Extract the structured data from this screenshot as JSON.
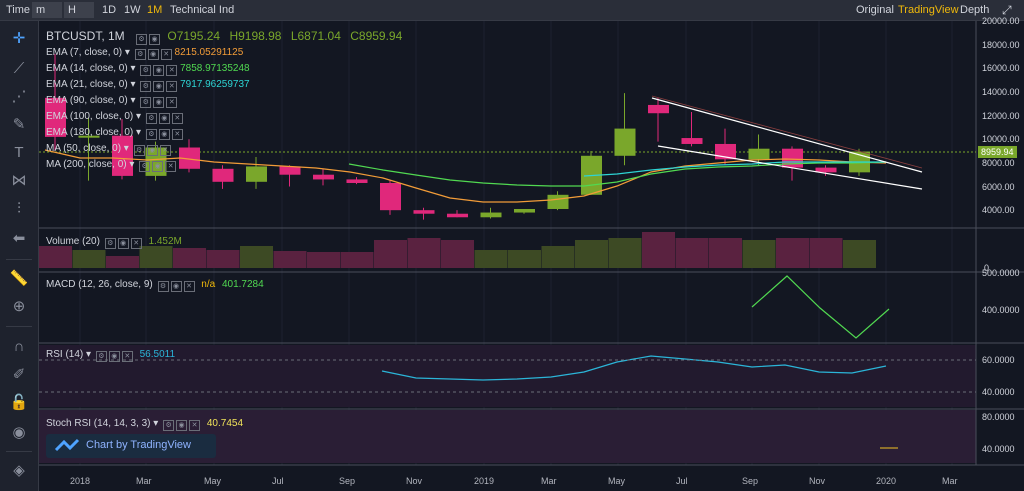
{
  "toolbar": {
    "time": "Time",
    "m": "m",
    "h": "H",
    "d1": "1D",
    "w1": "1W",
    "m1": "1M",
    "ti": "Technical Ind",
    "original": "Original",
    "tradingview": "TradingView",
    "depth": "Depth"
  },
  "symbol": {
    "name": "BTCUSDT, 1M",
    "o": "O7195.24",
    "h": "H9198.98",
    "l": "L6871.04",
    "c": "C8959.94"
  },
  "indicators": [
    {
      "label": "EMA (7, close, 0)",
      "value": "8215.05291125",
      "color": "#f29c38"
    },
    {
      "label": "EMA (14, close, 0)",
      "value": "7858.97135248",
      "color": "#51d951"
    },
    {
      "label": "EMA (21, close, 0)",
      "value": "7917.96259737",
      "color": "#2dd4d4"
    },
    {
      "label": "EMA (90, close, 0)",
      "value": "",
      "color": "#d1d4dc"
    },
    {
      "label": "EMA (100, close, 0)",
      "value": "",
      "color": "#d1d4dc"
    },
    {
      "label": "EMA (180, close, 0)",
      "value": "",
      "color": "#d1d4dc"
    },
    {
      "label": "MA (50, close, 0)",
      "value": "",
      "color": "#d1d4dc"
    },
    {
      "label": "MA (200, close, 0)",
      "value": "",
      "color": "#d1d4dc"
    }
  ],
  "volume": {
    "label": "Volume (20)",
    "value": "1.452M"
  },
  "macd": {
    "label": "MACD (12, 26, close, 9)",
    "na": "n/a",
    "value": "401.7284"
  },
  "rsi": {
    "label": "RSI (14)",
    "value": "56.5011"
  },
  "stoch": {
    "label": "Stoch RSI (14, 14, 3, 3)",
    "value": "40.7454"
  },
  "badge": "Chart by TradingView",
  "price_tag": "8959.94",
  "price_axis": [
    "20000.00",
    "18000.00",
    "16000.00",
    "14000.00",
    "12000.00",
    "10000.00",
    "8000.00",
    "6000.00",
    "4000.00"
  ],
  "macd_axis": [
    "500.0000",
    "400.0000"
  ],
  "rsi_axis": [
    "60.0000",
    "40.0000"
  ],
  "stoch_axis": [
    "80.0000",
    "40.0000"
  ],
  "vol_axis": "0",
  "x_axis": [
    "2018",
    "Mar",
    "May",
    "Jul",
    "Sep",
    "Nov",
    "2019",
    "Mar",
    "May",
    "Jul",
    "Sep",
    "Nov",
    "2020",
    "Mar"
  ],
  "chart_data": {
    "type": "candlestick",
    "candles": [
      {
        "o": 13500,
        "h": 17200,
        "l": 9000,
        "c": 10200
      },
      {
        "o": 10200,
        "h": 11800,
        "l": 6500,
        "c": 10300
      },
      {
        "o": 10300,
        "h": 11700,
        "l": 6600,
        "c": 6900
      },
      {
        "o": 6900,
        "h": 9800,
        "l": 6500,
        "c": 9300
      },
      {
        "o": 9300,
        "h": 10000,
        "l": 7200,
        "c": 7500
      },
      {
        "o": 7500,
        "h": 7800,
        "l": 5800,
        "c": 6400
      },
      {
        "o": 6400,
        "h": 8500,
        "l": 5800,
        "c": 7700
      },
      {
        "o": 7700,
        "h": 7800,
        "l": 6000,
        "c": 7000
      },
      {
        "o": 7000,
        "h": 7500,
        "l": 6100,
        "c": 6600
      },
      {
        "o": 6600,
        "h": 6800,
        "l": 6200,
        "c": 6300
      },
      {
        "o": 6300,
        "h": 6500,
        "l": 3600,
        "c": 4000
      },
      {
        "o": 4000,
        "h": 4200,
        "l": 3200,
        "c": 3700
      },
      {
        "o": 3700,
        "h": 4000,
        "l": 3400,
        "c": 3400
      },
      {
        "o": 3400,
        "h": 4200,
        "l": 3300,
        "c": 3800
      },
      {
        "o": 3800,
        "h": 4100,
        "l": 3700,
        "c": 4100
      },
      {
        "o": 4100,
        "h": 5600,
        "l": 4000,
        "c": 5300
      },
      {
        "o": 5300,
        "h": 9000,
        "l": 5300,
        "c": 8600
      },
      {
        "o": 8600,
        "h": 13900,
        "l": 7800,
        "c": 10900
      },
      {
        "o": 12900,
        "h": 13500,
        "l": 9800,
        "c": 12200
      },
      {
        "o": 10100,
        "h": 12300,
        "l": 9400,
        "c": 9600
      },
      {
        "o": 9600,
        "h": 10900,
        "l": 7800,
        "c": 8300
      },
      {
        "o": 8300,
        "h": 10400,
        "l": 7800,
        "c": 9200
      },
      {
        "o": 9200,
        "h": 9400,
        "l": 6500,
        "c": 7600
      },
      {
        "o": 7600,
        "h": 7800,
        "l": 6900,
        "c": 7200
      },
      {
        "o": 7200,
        "h": 9200,
        "l": 6900,
        "c": 8960
      }
    ]
  }
}
